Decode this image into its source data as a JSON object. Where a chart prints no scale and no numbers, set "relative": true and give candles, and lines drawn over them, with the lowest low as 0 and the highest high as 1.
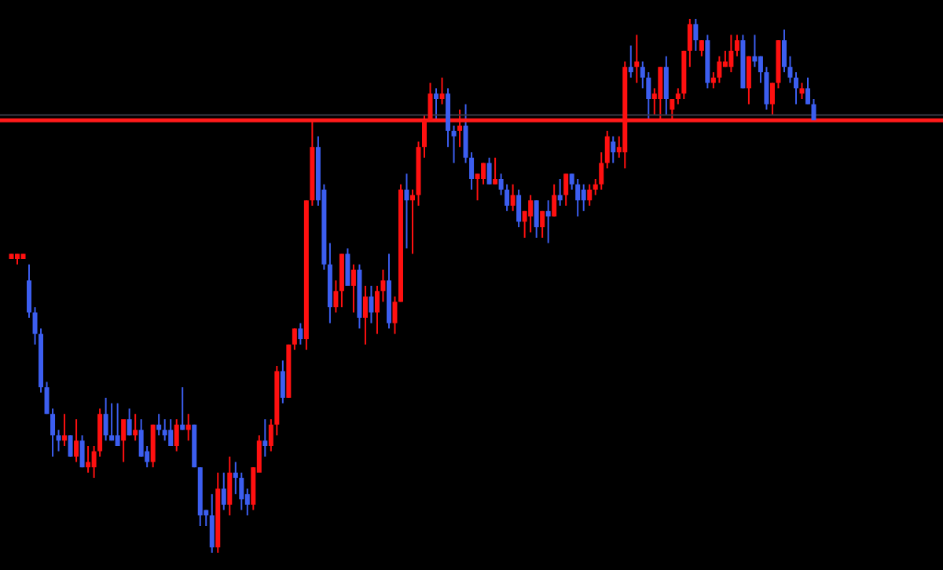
{
  "chart_data": {
    "type": "candlestick",
    "relative": true,
    "categories": [
      null,
      null,
      null,
      null,
      null,
      null,
      null,
      null,
      null,
      null,
      null,
      null,
      null,
      null,
      null,
      null,
      null,
      null,
      null,
      null,
      null,
      null,
      null,
      null,
      null,
      null,
      null,
      null,
      null,
      null,
      null,
      null,
      null,
      null,
      null,
      null,
      null,
      null,
      null,
      null,
      null,
      null,
      null,
      null,
      null,
      null,
      null,
      null,
      null,
      null,
      null,
      null,
      null,
      null,
      null,
      null,
      null,
      null,
      null,
      null,
      null,
      null,
      null,
      null,
      null,
      null,
      null,
      null,
      null,
      null,
      null,
      null,
      null,
      null,
      null,
      null,
      null,
      null,
      null,
      null,
      null,
      null,
      null,
      null,
      null,
      null,
      null,
      null,
      null,
      null,
      null,
      null,
      null,
      null,
      null,
      null,
      null,
      null,
      null,
      null,
      null,
      null,
      null,
      null,
      null,
      null,
      null,
      null,
      null,
      null,
      null,
      null,
      null,
      null,
      null,
      null,
      null,
      null,
      null,
      null,
      null,
      null,
      null,
      null,
      null,
      null,
      null,
      null,
      null,
      null,
      null,
      null,
      null,
      null,
      null,
      null,
      null
    ],
    "ohlc": [
      [
        0.55,
        0.56,
        0.55,
        0.56
      ],
      [
        0.55,
        0.56,
        0.54,
        0.56
      ],
      [
        0.55,
        0.56,
        0.55,
        0.56
      ],
      [
        0.51,
        0.54,
        0.44,
        0.45
      ],
      [
        0.45,
        0.46,
        0.39,
        0.41
      ],
      [
        0.41,
        0.42,
        0.3,
        0.31
      ],
      [
        0.31,
        0.32,
        0.26,
        0.26
      ],
      [
        0.26,
        0.27,
        0.18,
        0.22
      ],
      [
        0.22,
        0.23,
        0.19,
        0.21
      ],
      [
        0.21,
        0.26,
        0.2,
        0.22
      ],
      [
        0.22,
        0.22,
        0.18,
        0.18
      ],
      [
        0.18,
        0.25,
        0.17,
        0.21
      ],
      [
        0.21,
        0.22,
        0.16,
        0.16
      ],
      [
        0.16,
        0.2,
        0.15,
        0.17
      ],
      [
        0.16,
        0.2,
        0.14,
        0.19
      ],
      [
        0.19,
        0.27,
        0.18,
        0.26
      ],
      [
        0.26,
        0.29,
        0.21,
        0.22
      ],
      [
        0.22,
        0.28,
        0.21,
        0.21
      ],
      [
        0.22,
        0.28,
        0.2,
        0.2
      ],
      [
        0.21,
        0.25,
        0.17,
        0.25
      ],
      [
        0.25,
        0.27,
        0.22,
        0.22
      ],
      [
        0.22,
        0.26,
        0.21,
        0.23
      ],
      [
        0.23,
        0.25,
        0.18,
        0.18
      ],
      [
        0.19,
        0.2,
        0.16,
        0.17
      ],
      [
        0.17,
        0.24,
        0.16,
        0.24
      ],
      [
        0.24,
        0.26,
        0.22,
        0.23
      ],
      [
        0.23,
        0.25,
        0.21,
        0.22
      ],
      [
        0.23,
        0.25,
        0.2,
        0.2
      ],
      [
        0.2,
        0.25,
        0.19,
        0.24
      ],
      [
        0.24,
        0.31,
        0.23,
        0.23
      ],
      [
        0.23,
        0.26,
        0.21,
        0.24
      ],
      [
        0.24,
        0.24,
        0.16,
        0.16
      ],
      [
        0.16,
        0.16,
        0.05,
        0.07
      ],
      [
        0.08,
        0.08,
        0.05,
        0.07
      ],
      [
        0.07,
        0.11,
        0,
        0.01
      ],
      [
        0.01,
        0.15,
        0.0,
        0.12
      ],
      [
        0.12,
        0.15,
        0.08,
        0.09
      ],
      [
        0.09,
        0.18,
        0.07,
        0.15
      ],
      [
        0.15,
        0.17,
        0.11,
        0.14
      ],
      [
        0.14,
        0.15,
        0.08,
        0.1
      ],
      [
        0.11,
        0.12,
        0.07,
        0.09
      ],
      [
        0.09,
        0.16,
        0.08,
        0.16
      ],
      [
        0.15,
        0.22,
        0.15,
        0.21
      ],
      [
        0.21,
        0.25,
        0.18,
        0.2
      ],
      [
        0.2,
        0.25,
        0.19,
        0.24
      ],
      [
        0.24,
        0.35,
        0.22,
        0.34
      ],
      [
        0.34,
        0.36,
        0.28,
        0.29
      ],
      [
        0.29,
        0.39,
        0.29,
        0.39
      ],
      [
        0.39,
        0.42,
        0.38,
        0.42
      ],
      [
        0.42,
        0.43,
        0.39,
        0.4
      ],
      [
        0.4,
        0.66,
        0.38,
        0.66
      ],
      [
        0.66,
        0.81,
        0.65,
        0.76
      ],
      [
        0.76,
        0.78,
        0.65,
        0.66
      ],
      [
        0.68,
        0.69,
        0.53,
        0.54
      ],
      [
        0.54,
        0.58,
        0.43,
        0.46
      ],
      [
        0.46,
        0.51,
        0.45,
        0.49
      ],
      [
        0.49,
        0.56,
        0.46,
        0.56
      ],
      [
        0.56,
        0.57,
        0.5,
        0.5
      ],
      [
        0.5,
        0.54,
        0.45,
        0.53
      ],
      [
        0.53,
        0.54,
        0.42,
        0.44
      ],
      [
        0.44,
        0.5,
        0.39,
        0.48
      ],
      [
        0.48,
        0.5,
        0.43,
        0.45
      ],
      [
        0.45,
        0.5,
        0.41,
        0.49
      ],
      [
        0.49,
        0.53,
        0.47,
        0.51
      ],
      [
        0.51,
        0.56,
        0.42,
        0.43
      ],
      [
        0.43,
        0.48,
        0.41,
        0.47
      ],
      [
        0.47,
        0.69,
        0.47,
        0.68
      ],
      [
        0.68,
        0.71,
        0.57,
        0.66
      ],
      [
        0.66,
        0.68,
        0.56,
        0.67
      ],
      [
        0.67,
        0.77,
        0.65,
        0.76
      ],
      [
        0.76,
        0.82,
        0.74,
        0.81
      ],
      [
        0.81,
        0.88,
        0.81,
        0.86
      ],
      [
        0.86,
        0.87,
        0.81,
        0.85
      ],
      [
        0.85,
        0.89,
        0.84,
        0.86
      ],
      [
        0.86,
        0.87,
        0.76,
        0.79
      ],
      [
        0.79,
        0.8,
        0.73,
        0.78
      ],
      [
        0.79,
        0.83,
        0.76,
        0.8
      ],
      [
        0.8,
        0.84,
        0.73,
        0.74
      ],
      [
        0.74,
        0.75,
        0.68,
        0.7
      ],
      [
        0.7,
        0.71,
        0.66,
        0.71
      ],
      [
        0.7,
        0.73,
        0.69,
        0.73
      ],
      [
        0.73,
        0.74,
        0.69,
        0.69
      ],
      [
        0.69,
        0.74,
        0.69,
        0.7
      ],
      [
        0.7,
        0.71,
        0.67,
        0.68
      ],
      [
        0.68,
        0.69,
        0.64,
        0.65
      ],
      [
        0.65,
        0.69,
        0.64,
        0.67
      ],
      [
        0.67,
        0.68,
        0.61,
        0.62
      ],
      [
        0.62,
        0.64,
        0.59,
        0.64
      ],
      [
        0.63,
        0.67,
        0.6,
        0.66
      ],
      [
        0.66,
        0.66,
        0.59,
        0.61
      ],
      [
        0.61,
        0.64,
        0.59,
        0.64
      ],
      [
        0.64,
        0.66,
        0.58,
        0.63
      ],
      [
        0.63,
        0.69,
        0.63,
        0.67
      ],
      [
        0.67,
        0.7,
        0.65,
        0.66
      ],
      [
        0.67,
        0.71,
        0.65,
        0.71
      ],
      [
        0.71,
        0.71,
        0.68,
        0.69
      ],
      [
        0.69,
        0.7,
        0.63,
        0.66
      ],
      [
        0.68,
        0.69,
        0.64,
        0.66
      ],
      [
        0.66,
        0.69,
        0.65,
        0.68
      ],
      [
        0.68,
        0.7,
        0.67,
        0.69
      ],
      [
        0.69,
        0.75,
        0.68,
        0.73
      ],
      [
        0.73,
        0.79,
        0.72,
        0.78
      ],
      [
        0.77,
        0.78,
        0.73,
        0.75
      ],
      [
        0.75,
        0.78,
        0.74,
        0.76
      ],
      [
        0.75,
        0.92,
        0.72,
        0.91
      ],
      [
        0.91,
        0.95,
        0.89,
        0.9
      ],
      [
        0.91,
        0.97,
        0.88,
        0.92
      ],
      [
        0.91,
        0.92,
        0.87,
        0.89
      ],
      [
        0.89,
        0.9,
        0.81,
        0.85
      ],
      [
        0.85,
        0.87,
        0.82,
        0.86
      ],
      [
        0.85,
        0.91,
        0.81,
        0.91
      ],
      [
        0.91,
        0.93,
        0.82,
        0.85
      ],
      [
        0.83,
        0.85,
        0.81,
        0.85
      ],
      [
        0.85,
        0.87,
        0.84,
        0.86
      ],
      [
        0.86,
        0.94,
        0.85,
        0.94
      ],
      [
        0.94,
        1,
        0.91,
        0.99
      ],
      [
        0.99,
        1,
        0.94,
        0.96
      ],
      [
        0.94,
        0.96,
        0.93,
        0.96
      ],
      [
        0.96,
        0.97,
        0.87,
        0.88
      ],
      [
        0.88,
        0.9,
        0.87,
        0.89
      ],
      [
        0.89,
        0.93,
        0.88,
        0.92
      ],
      [
        0.91,
        0.94,
        0.91,
        0.92
      ],
      [
        0.91,
        0.97,
        0.9,
        0.94
      ],
      [
        0.94,
        0.97,
        0.93,
        0.96
      ],
      [
        0.96,
        0.97,
        0.87,
        0.87
      ],
      [
        0.87,
        0.93,
        0.84,
        0.93
      ],
      [
        0.93,
        0.97,
        0.91,
        0.92
      ],
      [
        0.93,
        0.93,
        0.88,
        0.9
      ],
      [
        0.9,
        0.91,
        0.83,
        0.84
      ],
      [
        0.84,
        0.88,
        0.82,
        0.88
      ],
      [
        0.88,
        0.96,
        0.87,
        0.96
      ],
      [
        0.96,
        0.98,
        0.9,
        0.91
      ],
      [
        0.91,
        0.93,
        0.88,
        0.89
      ],
      [
        0.89,
        0.9,
        0.84,
        0.87
      ],
      [
        0.86,
        0.88,
        0.85,
        0.87
      ],
      [
        0.87,
        0.89,
        0.84,
        0.84
      ],
      [
        0.84,
        0.85,
        0.81,
        0.81
      ]
    ],
    "colors": [
      "#ff1010",
      "#ff1010",
      "#ff1010",
      "#3c5ef0",
      "#3c5ef0",
      "#3c5ef0",
      "#3c5ef0",
      "#3c5ef0",
      "#3c5ef0",
      "#ff1010",
      "#3c5ef0",
      "#ff1010",
      "#3c5ef0",
      "#ff1010",
      "#ff1010",
      "#ff1010",
      "#3c5ef0",
      "#3c5ef0",
      "#3c5ef0",
      "#ff1010",
      "#3c5ef0",
      "#ff1010",
      "#3c5ef0",
      "#3c5ef0",
      "#ff1010",
      "#3c5ef0",
      "#3c5ef0",
      "#3c5ef0",
      "#ff1010",
      "#3c5ef0",
      "#ff1010",
      "#3c5ef0",
      "#3c5ef0",
      "#3c5ef0",
      "#3c5ef0",
      "#ff1010",
      "#3c5ef0",
      "#ff1010",
      "#3c5ef0",
      "#3c5ef0",
      "#3c5ef0",
      "#ff1010",
      "#ff1010",
      "#3c5ef0",
      "#ff1010",
      "#ff1010",
      "#3c5ef0",
      "#ff1010",
      "#ff1010",
      "#3c5ef0",
      "#ff1010",
      "#ff1010",
      "#3c5ef0",
      "#3c5ef0",
      "#3c5ef0",
      "#ff1010",
      "#ff1010",
      "#3c5ef0",
      "#ff1010",
      "#3c5ef0",
      "#ff1010",
      "#3c5ef0",
      "#ff1010",
      "#ff1010",
      "#3c5ef0",
      "#ff1010",
      "#ff1010",
      "#3c5ef0",
      "#ff1010",
      "#ff1010",
      "#ff1010",
      "#ff1010",
      "#3c5ef0",
      "#ff1010",
      "#3c5ef0",
      "#3c5ef0",
      "#ff1010",
      "#3c5ef0",
      "#3c5ef0",
      "#ff1010",
      "#ff1010",
      "#3c5ef0",
      "#ff1010",
      "#3c5ef0",
      "#3c5ef0",
      "#ff1010",
      "#3c5ef0",
      "#ff1010",
      "#ff1010",
      "#3c5ef0",
      "#ff1010",
      "#3c5ef0",
      "#ff1010",
      "#3c5ef0",
      "#ff1010",
      "#3c5ef0",
      "#3c5ef0",
      "#3c5ef0",
      "#ff1010",
      "#ff1010",
      "#ff1010",
      "#ff1010",
      "#3c5ef0",
      "#ff1010",
      "#ff1010",
      "#3c5ef0",
      "#ff1010",
      "#3c5ef0",
      "#3c5ef0",
      "#ff1010",
      "#ff1010",
      "#3c5ef0",
      "#ff1010",
      "#ff1010",
      "#ff1010",
      "#ff1010",
      "#3c5ef0",
      "#ff1010",
      "#3c5ef0",
      "#ff1010",
      "#ff1010",
      "#ff1010",
      "#ff1010",
      "#ff1010",
      "#3c5ef0",
      "#ff1010",
      "#3c5ef0",
      "#3c5ef0",
      "#3c5ef0",
      "#ff1010",
      "#ff1010",
      "#3c5ef0",
      "#3c5ef0",
      "#3c5ef0",
      "#ff1010",
      "#3c5ef0",
      "#3c5ef0"
    ],
    "ref_lines": [
      {
        "axis": "y",
        "value": 0.82,
        "color": "#3a3a48"
      },
      {
        "axis": "y",
        "value": 0.81,
        "color": "#ff1a1a"
      }
    ]
  }
}
